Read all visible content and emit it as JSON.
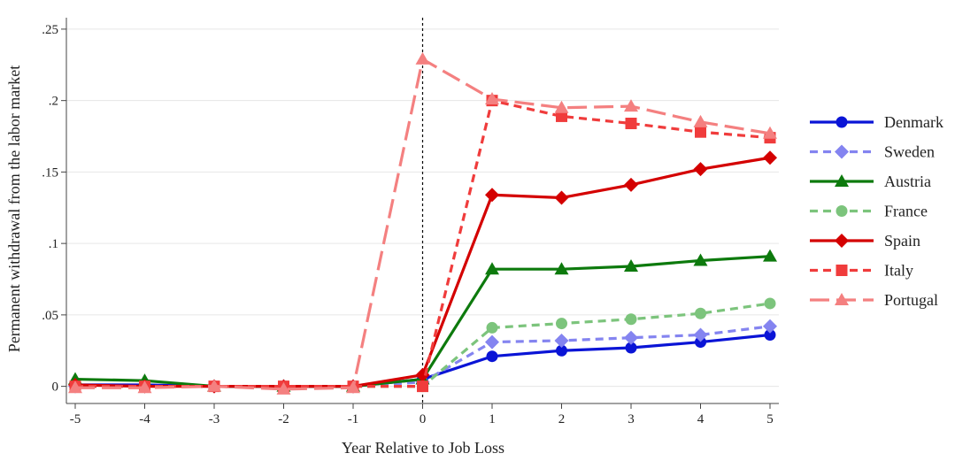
{
  "chart_data": {
    "type": "line",
    "title": "",
    "xlabel": "Year Relative to Job Loss",
    "ylabel": "Permanent withdrawal from the labor market",
    "x": [
      -5,
      -4,
      -3,
      -2,
      -1,
      0,
      1,
      2,
      3,
      4,
      5
    ],
    "x_ticks": [
      "-5",
      "-4",
      "-3",
      "-2",
      "-1",
      "0",
      "1",
      "2",
      "3",
      "4",
      "5"
    ],
    "xlim": [
      -5,
      5
    ],
    "ylim": [
      -0.012,
      0.258
    ],
    "y_ticks": [
      0,
      0.05,
      0.1,
      0.15,
      0.2,
      0.25
    ],
    "y_tick_labels": [
      "0",
      ".05",
      ".1",
      ".15",
      ".2",
      ".25"
    ],
    "grid": "horizontal",
    "vertical_reference_line_x": 0,
    "legend_position": "right",
    "series": [
      {
        "name": "Denmark",
        "color": "#0a14d6",
        "dash": "solid",
        "marker": "circle",
        "values": [
          0.001,
          0.001,
          0.0,
          0.0,
          0.0,
          0.005,
          0.021,
          0.025,
          0.027,
          0.031,
          0.036
        ]
      },
      {
        "name": "Sweden",
        "color": "#8484f0",
        "dash": "dashed",
        "marker": "diamond",
        "values": [
          0.0,
          0.0,
          0.0,
          0.0,
          0.0,
          0.003,
          0.031,
          0.032,
          0.034,
          0.036,
          0.042
        ]
      },
      {
        "name": "Austria",
        "color": "#0d7a0d",
        "dash": "solid",
        "marker": "triangle",
        "values": [
          0.005,
          0.004,
          0.0,
          0.0,
          0.0,
          0.005,
          0.082,
          0.082,
          0.084,
          0.088,
          0.091
        ]
      },
      {
        "name": "France",
        "color": "#7cc47c",
        "dash": "dashed",
        "marker": "circle",
        "values": [
          0.0,
          0.0,
          0.0,
          0.0,
          0.0,
          0.0,
          0.041,
          0.044,
          0.047,
          0.051,
          0.058
        ]
      },
      {
        "name": "Spain",
        "color": "#d40000",
        "dash": "solid",
        "marker": "diamond",
        "values": [
          0.001,
          0.0,
          0.0,
          0.0,
          0.0,
          0.008,
          0.134,
          0.132,
          0.141,
          0.152,
          0.16
        ]
      },
      {
        "name": "Italy",
        "color": "#f03c3c",
        "dash": "dashed",
        "marker": "square",
        "values": [
          0.0,
          0.0,
          0.0,
          0.0,
          0.0,
          0.0,
          0.2,
          0.189,
          0.184,
          0.178,
          0.174
        ]
      },
      {
        "name": "Portugal",
        "color": "#f48080",
        "dash": "longdash",
        "marker": "triangle",
        "values": [
          -0.001,
          -0.001,
          0.0,
          -0.002,
          -0.001,
          0.229,
          0.201,
          0.195,
          0.196,
          0.185,
          0.177
        ]
      }
    ]
  }
}
